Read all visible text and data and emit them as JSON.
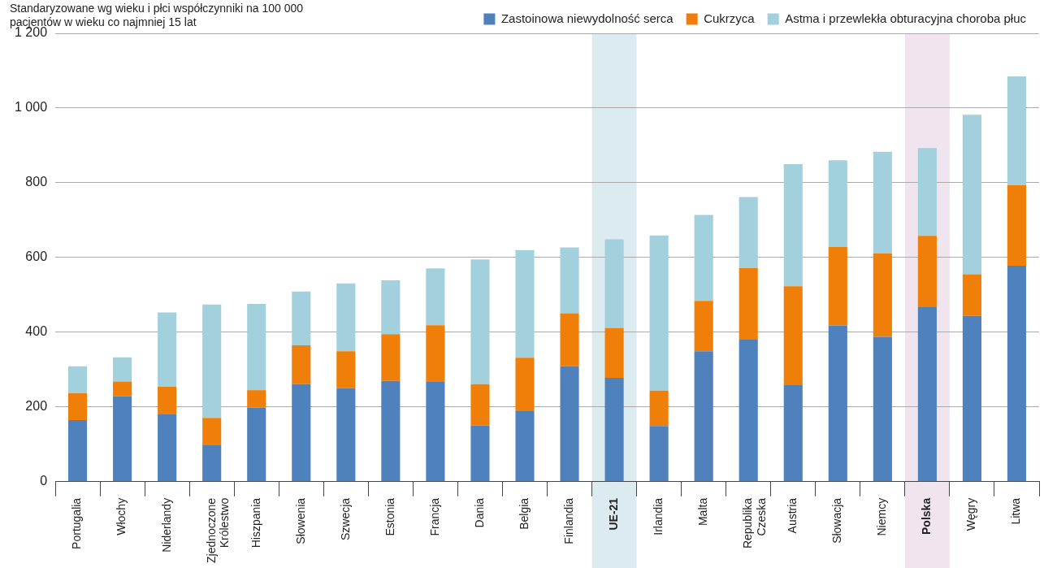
{
  "chart_data": {
    "type": "bar",
    "stacked": true,
    "ylabel": "Standaryzowane wg wieku i płci współczynniki na 100 000 pacjentów w wieku co najmniej 15 lat",
    "categories": [
      "Portugalia",
      "Włochy",
      "Niderlandy",
      "Zjednoczone Królestwo",
      "Hiszpania",
      "Słowenia",
      "Szwecja",
      "Estonia",
      "Francja",
      "Dania",
      "Belgia",
      "Finlandia",
      "UE-21",
      "Irlandia",
      "Malta",
      "Republika Czeska",
      "Austria",
      "Słowacja",
      "Niemcy",
      "Polska",
      "Węgry",
      "Litwa"
    ],
    "series": [
      {
        "name": "Zastoinowa niewydolność serca",
        "color": "#4f81bd",
        "values": [
          165,
          229,
          182,
          99,
          198,
          261,
          251,
          270,
          267,
          150,
          189,
          309,
          278,
          149,
          349,
          380,
          260,
          418,
          388,
          467,
          444,
          578
        ]
      },
      {
        "name": "Cukrzyca",
        "color": "#f07f09",
        "values": [
          72,
          39,
          72,
          72,
          47,
          104,
          98,
          125,
          152,
          111,
          143,
          142,
          133,
          95,
          135,
          192,
          263,
          210,
          223,
          191,
          111,
          216
        ]
      },
      {
        "name": "Astma i przewlekła obturacyjna choroba płuc",
        "color": "#a2d0dc",
        "values": [
          72,
          65,
          199,
          303,
          231,
          144,
          182,
          144,
          152,
          334,
          288,
          176,
          238,
          415,
          230,
          190,
          327,
          232,
          272,
          235,
          427,
          291
        ]
      }
    ],
    "ylim": [
      0,
      1200
    ],
    "yticks": [
      {
        "value": 0,
        "label": "0"
      },
      {
        "value": 200,
        "label": "200"
      },
      {
        "value": 400,
        "label": "400"
      },
      {
        "value": 600,
        "label": "600"
      },
      {
        "value": 800,
        "label": "800"
      },
      {
        "value": 1000,
        "label": "1 000"
      },
      {
        "value": 1200,
        "label": "1 200"
      }
    ],
    "grid": "y",
    "legend": "top right",
    "bands": [
      {
        "axis": "x",
        "from": "UE-21",
        "to": "UE-21",
        "color": "#dcebf0"
      },
      {
        "axis": "x",
        "from": "Polska",
        "to": "Polska",
        "color": "#f0e4ee"
      }
    ]
  }
}
